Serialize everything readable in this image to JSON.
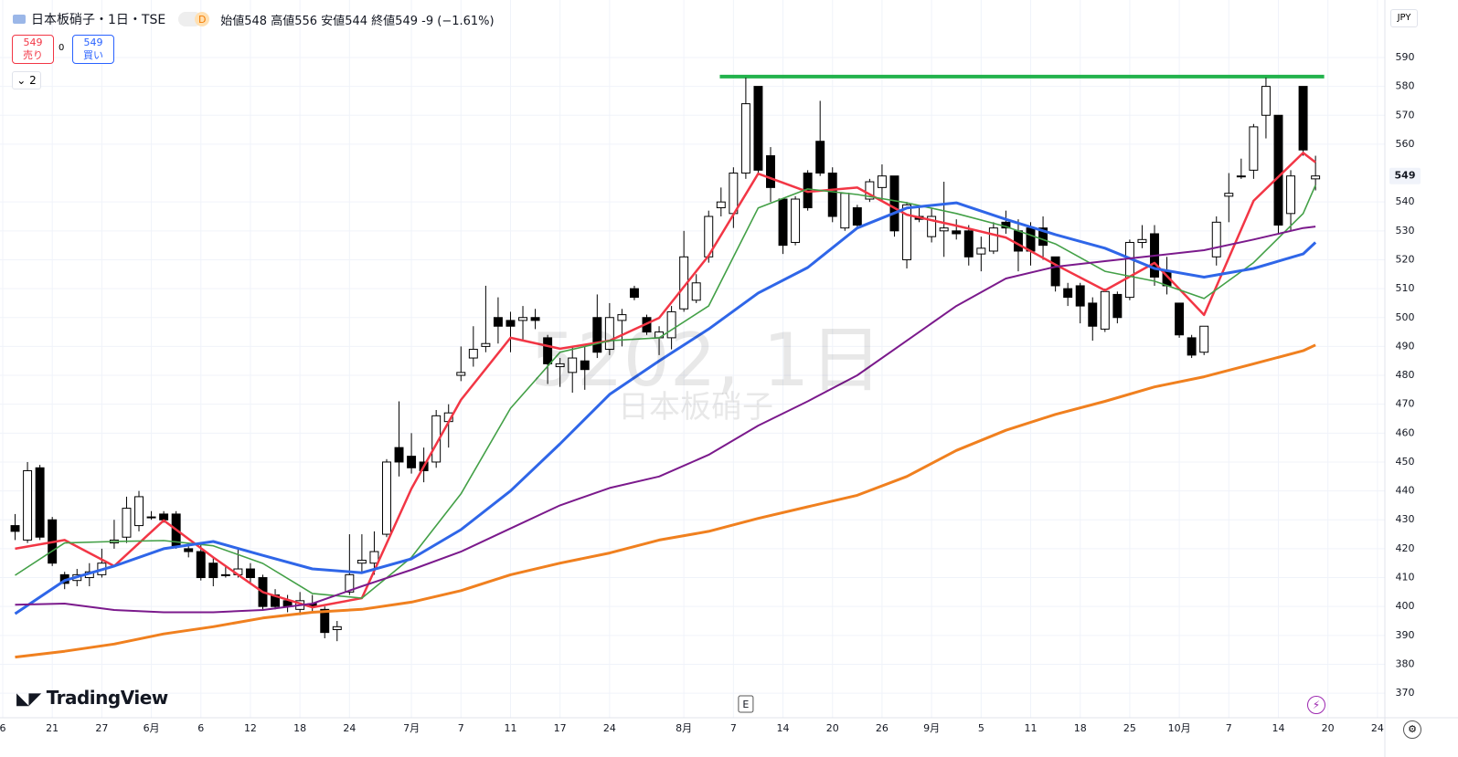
{
  "ui": {
    "symbol": "日本板硝子・1日・TSE",
    "interval_badge": "D",
    "ohlc_labels": [
      "始値",
      "高値",
      "安値",
      "終値"
    ],
    "ohlc_values": [
      548,
      556,
      544,
      549
    ],
    "change": -9,
    "change_pct": "(−1.61%)",
    "sell_price": 549,
    "sell_label": "売り",
    "spread": 0,
    "buy_price": 549,
    "buy_label": "買い",
    "indicators_count": 2,
    "watermark": "5202, 1日",
    "watermark_name": "日本板硝子",
    "brand": "TradingView",
    "currency": "JPY",
    "event": "E"
  },
  "chart_data": {
    "type": "candlestick",
    "xlim": [
      -1.22,
      110.6
    ],
    "ylim": [
      361.5,
      609.9
    ],
    "yticks": [
      590,
      580,
      570,
      560,
      540,
      530,
      520,
      510,
      500,
      490,
      480,
      470,
      460,
      450,
      440,
      430,
      420,
      410,
      400,
      390,
      380,
      370
    ],
    "xticks": [
      {
        "value": -1,
        "label": "6"
      },
      {
        "value": 3,
        "label": "21"
      },
      {
        "value": 7,
        "label": "27"
      },
      {
        "value": 11,
        "label": "6月"
      },
      {
        "value": 15,
        "label": "6"
      },
      {
        "value": 19,
        "label": "12"
      },
      {
        "value": 23,
        "label": "18"
      },
      {
        "value": 27,
        "label": "24"
      },
      {
        "value": 32,
        "label": "7月"
      },
      {
        "value": 36,
        "label": "7"
      },
      {
        "value": 40,
        "label": "11"
      },
      {
        "value": 44,
        "label": "17"
      },
      {
        "value": 48,
        "label": "24"
      },
      {
        "value": 54,
        "label": "8月"
      },
      {
        "value": 58,
        "label": "7"
      },
      {
        "value": 62,
        "label": "14"
      },
      {
        "value": 66,
        "label": "20"
      },
      {
        "value": 70,
        "label": "26"
      },
      {
        "value": 74,
        "label": "9月"
      },
      {
        "value": 78,
        "label": "5"
      },
      {
        "value": 82,
        "label": "11"
      },
      {
        "value": 86,
        "label": "18"
      },
      {
        "value": 90,
        "label": "25"
      },
      {
        "value": 94,
        "label": "10月"
      },
      {
        "value": 98,
        "label": "7"
      },
      {
        "value": 102,
        "label": "14"
      },
      {
        "value": 106,
        "label": "20"
      },
      {
        "value": 110,
        "label": "24"
      }
    ],
    "grid": true,
    "last_price": 549,
    "up_color": "#ffffff",
    "down_color": "#000000",
    "hline": {
      "value": 583.4,
      "x": [
        56.9,
        105.7
      ],
      "color": "#22b24c"
    },
    "event_x": 59,
    "candles": [
      {
        "o": 428,
        "h": 432,
        "l": 423,
        "c": 426
      },
      {
        "o": 423,
        "h": 450,
        "l": 422,
        "c": 447
      },
      {
        "o": 448,
        "h": 449,
        "l": 423,
        "c": 424
      },
      {
        "o": 430,
        "h": 431,
        "l": 414,
        "c": 415
      },
      {
        "o": 411,
        "h": 412,
        "l": 406,
        "c": 408
      },
      {
        "o": 409,
        "h": 413,
        "l": 407,
        "c": 411
      },
      {
        "o": 410,
        "h": 415,
        "l": 407,
        "c": 412
      },
      {
        "o": 411,
        "h": 420,
        "l": 410,
        "c": 415
      },
      {
        "o": 422,
        "h": 430,
        "l": 420,
        "c": 423
      },
      {
        "o": 424,
        "h": 438,
        "l": 422,
        "c": 434
      },
      {
        "o": 428,
        "h": 440,
        "l": 426,
        "c": 438
      },
      {
        "o": 431,
        "h": 433,
        "l": 430,
        "c": 431
      },
      {
        "o": 432,
        "h": 433,
        "l": 429,
        "c": 430
      },
      {
        "o": 432,
        "h": 433,
        "l": 420,
        "c": 421
      },
      {
        "o": 420,
        "h": 422,
        "l": 417,
        "c": 419
      },
      {
        "o": 419,
        "h": 422,
        "l": 409,
        "c": 410
      },
      {
        "o": 415,
        "h": 417,
        "l": 407,
        "c": 410
      },
      {
        "o": 411,
        "h": 414,
        "l": 410,
        "c": 411
      },
      {
        "o": 411,
        "h": 420,
        "l": 410,
        "c": 413
      },
      {
        "o": 413,
        "h": 415,
        "l": 408,
        "c": 410
      },
      {
        "o": 410,
        "h": 411,
        "l": 399,
        "c": 400
      },
      {
        "o": 404,
        "h": 406,
        "l": 399,
        "c": 400
      },
      {
        "o": 402,
        "h": 404,
        "l": 398,
        "c": 400
      },
      {
        "o": 399,
        "h": 405,
        "l": 397,
        "c": 402
      },
      {
        "o": 401,
        "h": 404,
        "l": 398,
        "c": 400
      },
      {
        "o": 399,
        "h": 400,
        "l": 389,
        "c": 391
      },
      {
        "o": 392,
        "h": 395,
        "l": 388,
        "c": 393
      },
      {
        "o": 405,
        "h": 425,
        "l": 404,
        "c": 411
      },
      {
        "o": 415,
        "h": 425,
        "l": 412,
        "c": 416
      },
      {
        "o": 415,
        "h": 426,
        "l": 411,
        "c": 419
      },
      {
        "o": 425,
        "h": 451,
        "l": 424,
        "c": 450
      },
      {
        "o": 455,
        "h": 471,
        "l": 445,
        "c": 450
      },
      {
        "o": 452,
        "h": 460,
        "l": 446,
        "c": 448
      },
      {
        "o": 450,
        "h": 455,
        "l": 443,
        "c": 447
      },
      {
        "o": 450,
        "h": 468,
        "l": 448,
        "c": 466
      },
      {
        "o": 464,
        "h": 470,
        "l": 455,
        "c": 467
      },
      {
        "o": 480,
        "h": 490,
        "l": 478,
        "c": 481
      },
      {
        "o": 486,
        "h": 497,
        "l": 483,
        "c": 489
      },
      {
        "o": 490,
        "h": 511,
        "l": 488,
        "c": 491
      },
      {
        "o": 500,
        "h": 507,
        "l": 491,
        "c": 497
      },
      {
        "o": 499,
        "h": 502,
        "l": 488,
        "c": 497
      },
      {
        "o": 499,
        "h": 504,
        "l": 492,
        "c": 500
      },
      {
        "o": 500,
        "h": 503,
        "l": 496,
        "c": 499
      },
      {
        "o": 493,
        "h": 494,
        "l": 477,
        "c": 484
      },
      {
        "o": 483,
        "h": 486,
        "l": 476,
        "c": 484
      },
      {
        "o": 481,
        "h": 490,
        "l": 474,
        "c": 486
      },
      {
        "o": 485,
        "h": 490,
        "l": 475,
        "c": 482
      },
      {
        "o": 500,
        "h": 508,
        "l": 486,
        "c": 488
      },
      {
        "o": 489,
        "h": 505,
        "l": 487,
        "c": 500
      },
      {
        "o": 499,
        "h": 503,
        "l": 490,
        "c": 501
      },
      {
        "o": 510,
        "h": 511,
        "l": 506,
        "c": 507
      },
      {
        "o": 500,
        "h": 501,
        "l": 494,
        "c": 495
      },
      {
        "o": 493,
        "h": 497,
        "l": 487,
        "c": 495
      },
      {
        "o": 493,
        "h": 504,
        "l": 489,
        "c": 502
      },
      {
        "o": 503,
        "h": 530,
        "l": 502,
        "c": 521
      },
      {
        "o": 506,
        "h": 515,
        "l": 505,
        "c": 512
      },
      {
        "o": 521,
        "h": 537,
        "l": 519,
        "c": 535
      },
      {
        "o": 538,
        "h": 545,
        "l": 535,
        "c": 540
      },
      {
        "o": 536,
        "h": 552,
        "l": 531,
        "c": 550
      },
      {
        "o": 550,
        "h": 583,
        "l": 548,
        "c": 574
      },
      {
        "o": 580,
        "h": 580,
        "l": 550,
        "c": 551
      },
      {
        "o": 556,
        "h": 559,
        "l": 540,
        "c": 545
      },
      {
        "o": 541,
        "h": 541,
        "l": 522,
        "c": 525
      },
      {
        "o": 526,
        "h": 542,
        "l": 525,
        "c": 541
      },
      {
        "o": 550,
        "h": 551,
        "l": 537,
        "c": 538
      },
      {
        "o": 561,
        "h": 575,
        "l": 549,
        "c": 550
      },
      {
        "o": 550,
        "h": 552,
        "l": 533,
        "c": 535
      },
      {
        "o": 531,
        "h": 543,
        "l": 530,
        "c": 543
      },
      {
        "o": 538,
        "h": 539,
        "l": 531,
        "c": 532
      },
      {
        "o": 541,
        "h": 548,
        "l": 540,
        "c": 547
      },
      {
        "o": 545,
        "h": 553,
        "l": 540,
        "c": 549
      },
      {
        "o": 549,
        "h": 549,
        "l": 528,
        "c": 530
      },
      {
        "o": 520,
        "h": 540,
        "l": 517,
        "c": 539
      },
      {
        "o": 535,
        "h": 538,
        "l": 533,
        "c": 534
      },
      {
        "o": 528,
        "h": 538,
        "l": 526,
        "c": 535
      },
      {
        "o": 530,
        "h": 547,
        "l": 521,
        "c": 531
      },
      {
        "o": 530,
        "h": 534,
        "l": 527,
        "c": 529
      },
      {
        "o": 530,
        "h": 532,
        "l": 518,
        "c": 521
      },
      {
        "o": 522,
        "h": 528,
        "l": 516,
        "c": 524
      },
      {
        "o": 523,
        "h": 533,
        "l": 522,
        "c": 531
      },
      {
        "o": 533,
        "h": 537,
        "l": 529,
        "c": 531
      },
      {
        "o": 530,
        "h": 534,
        "l": 516,
        "c": 523
      },
      {
        "o": 531,
        "h": 533,
        "l": 518,
        "c": 523
      },
      {
        "o": 531,
        "h": 535,
        "l": 520,
        "c": 525
      },
      {
        "o": 521,
        "h": 521,
        "l": 509,
        "c": 511
      },
      {
        "o": 510,
        "h": 512,
        "l": 504,
        "c": 507
      },
      {
        "o": 511,
        "h": 512,
        "l": 498,
        "c": 504
      },
      {
        "o": 505,
        "h": 507,
        "l": 492,
        "c": 497
      },
      {
        "o": 496,
        "h": 510,
        "l": 495,
        "c": 509
      },
      {
        "o": 508,
        "h": 509,
        "l": 498,
        "c": 500
      },
      {
        "o": 507,
        "h": 527,
        "l": 506,
        "c": 526
      },
      {
        "o": 526,
        "h": 532,
        "l": 524,
        "c": 527
      },
      {
        "o": 529,
        "h": 532,
        "l": 511,
        "c": 514
      },
      {
        "o": 516,
        "h": 521,
        "l": 508,
        "c": 511
      },
      {
        "o": 505,
        "h": 505,
        "l": 493,
        "c": 494
      },
      {
        "o": 493,
        "h": 494,
        "l": 486,
        "c": 487
      },
      {
        "o": 488,
        "h": 497,
        "l": 487,
        "c": 497
      },
      {
        "o": 521,
        "h": 535,
        "l": 518,
        "c": 533
      },
      {
        "o": 542,
        "h": 550,
        "l": 533,
        "c": 543
      },
      {
        "o": 549,
        "h": 555,
        "l": 548,
        "c": 549
      },
      {
        "o": 551,
        "h": 567,
        "l": 548,
        "c": 566
      },
      {
        "o": 570,
        "h": 583,
        "l": 562,
        "c": 580
      },
      {
        "o": 570,
        "h": 570,
        "l": 529,
        "c": 532
      },
      {
        "o": 536,
        "h": 551,
        "l": 530,
        "c": 549
      },
      {
        "o": 580,
        "h": 580,
        "l": 556,
        "c": 558
      },
      {
        "o": 548,
        "h": 556,
        "l": 544,
        "c": 549
      }
    ],
    "ma_x": [
      0,
      4,
      8,
      12,
      16,
      20,
      24,
      28,
      32,
      36,
      40,
      44,
      48,
      52,
      56,
      60,
      64,
      68,
      72,
      76,
      80,
      84,
      88,
      92,
      96,
      100,
      104,
      105
    ],
    "series": [
      {
        "color": "#f23645",
        "width": 2.5,
        "values": [
          420,
          423,
          414,
          429.8,
          417,
          405,
          399.7,
          402.9,
          440.8,
          471.5,
          493,
          489.2,
          492,
          499.9,
          521.4,
          549.8,
          543.5,
          545,
          535.6,
          531.8,
          527.7,
          518.3,
          509.4,
          518.9,
          500.9,
          540.4,
          557,
          553.7
        ]
      },
      {
        "color": "#43a047",
        "width": 1.6,
        "values": [
          410.8,
          422,
          422.5,
          422.8,
          421,
          414.9,
          404.5,
          402.9,
          417,
          439,
          468.6,
          488,
          492,
          493,
          504,
          537.9,
          544.5,
          542.6,
          539.7,
          536,
          531.5,
          525.5,
          516,
          512.6,
          506.6,
          519,
          536,
          545.8
        ]
      },
      {
        "color": "#2f66e8",
        "width": 3,
        "values": [
          397.5,
          409,
          414,
          420,
          422.5,
          417.7,
          413,
          411.7,
          416.5,
          426.6,
          440,
          456.3,
          473.4,
          485,
          496,
          508.5,
          517.3,
          531,
          537.9,
          539.7,
          534,
          528.7,
          524,
          517,
          514,
          517,
          522,
          526
        ]
      },
      {
        "color": "#7b1a8c",
        "width": 2,
        "values": [
          400.6,
          401,
          398.8,
          398,
          398,
          398.8,
          401,
          407,
          412.7,
          419,
          427,
          435,
          441,
          445,
          452.5,
          462.6,
          471,
          480,
          492,
          504,
          513.5,
          517.6,
          519.5,
          521.4,
          523.3,
          527,
          531,
          531.5
        ]
      },
      {
        "color": "#f0801f",
        "width": 3,
        "values": [
          382.5,
          384.5,
          387,
          390.5,
          393,
          396,
          398,
          399,
          401.5,
          405.5,
          411,
          415,
          418.5,
          423,
          426,
          430.5,
          434.5,
          438.5,
          445,
          454,
          461,
          466.5,
          471,
          476,
          479.5,
          484,
          488.5,
          490.5
        ]
      }
    ]
  }
}
